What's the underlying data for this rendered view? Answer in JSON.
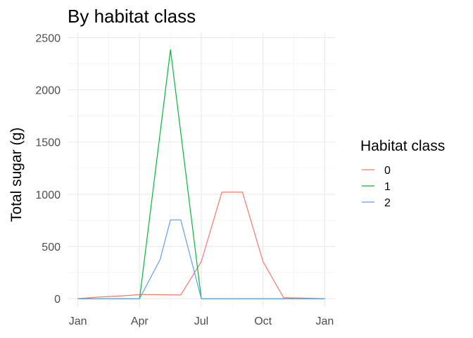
{
  "chart_data": {
    "type": "line",
    "title": "By habitat class",
    "xlabel": "",
    "ylabel": "Total sugar (g)",
    "x_ticks": [
      {
        "label": "Jan",
        "value": 0
      },
      {
        "label": "Apr",
        "value": 3
      },
      {
        "label": "Jul",
        "value": 6
      },
      {
        "label": "Oct",
        "value": 9
      },
      {
        "label": "Jan",
        "value": 12
      }
    ],
    "xlim": [
      -0.5,
      12.5
    ],
    "y_ticks": [
      0,
      500,
      1000,
      1500,
      2000,
      2500
    ],
    "ylim": [
      -80,
      2550
    ],
    "grid": true,
    "legend": {
      "title": "Habitat class",
      "position": "right"
    },
    "series": [
      {
        "name": "0",
        "color": "#F8766D",
        "x": [
          0,
          1,
          2,
          3,
          3.3,
          4,
          5,
          6,
          7,
          8,
          9,
          10,
          11,
          12
        ],
        "y": [
          0,
          15,
          25,
          38,
          40,
          38,
          35,
          355,
          1020,
          1020,
          355,
          10,
          5,
          0
        ]
      },
      {
        "name": "1",
        "color": "#00BA38",
        "x": [
          0,
          3,
          4.5,
          6,
          12
        ],
        "y": [
          0,
          0,
          2385,
          0,
          0
        ]
      },
      {
        "name": "2",
        "color": "#619CFF",
        "x": [
          0,
          3,
          4,
          4.5,
          5,
          6,
          12
        ],
        "y": [
          0,
          0,
          375,
          755,
          755,
          0,
          0
        ]
      }
    ]
  }
}
